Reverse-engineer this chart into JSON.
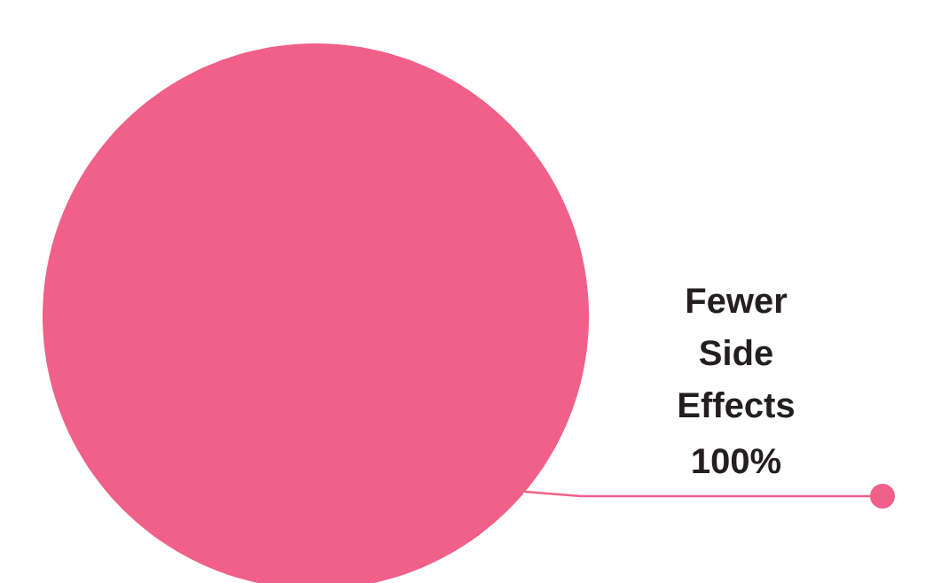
{
  "chart_data": {
    "type": "pie",
    "categories": [
      "Fewer Side Effects"
    ],
    "values": [
      100
    ],
    "colors": [
      "#f06088"
    ],
    "value_labels": [
      "100%"
    ]
  }
}
